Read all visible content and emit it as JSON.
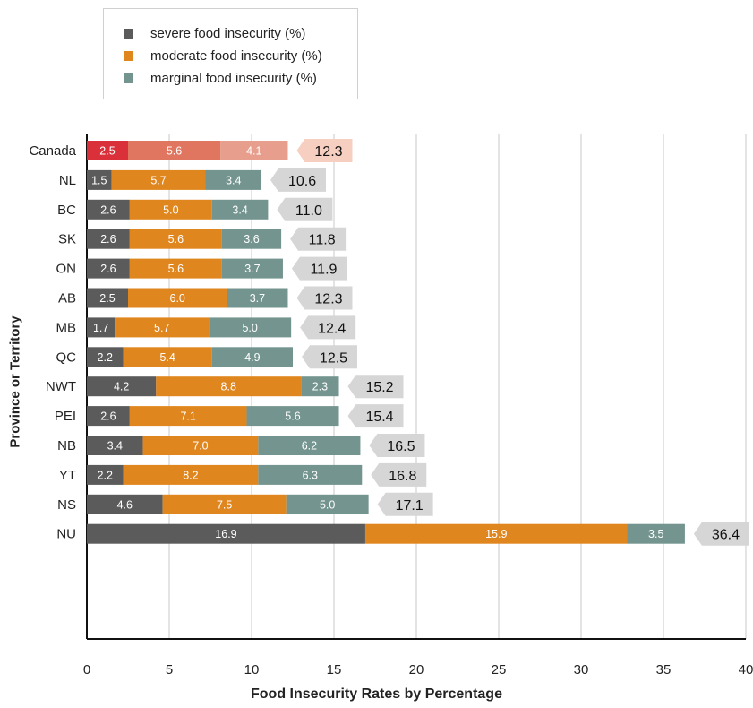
{
  "chart_data": {
    "type": "bar",
    "orientation": "horizontal",
    "stacked": true,
    "categories": [
      "Canada",
      "NL",
      "BC",
      "SK",
      "ON",
      "AB",
      "MB",
      "QC",
      "NWT",
      "PEI",
      "NB",
      "YT",
      "NS",
      "NU"
    ],
    "series": [
      {
        "name": "severe food insecurity (%)",
        "values": [
          2.5,
          1.5,
          2.6,
          2.6,
          2.6,
          2.5,
          1.7,
          2.2,
          4.2,
          2.6,
          3.4,
          2.2,
          4.6,
          16.9
        ]
      },
      {
        "name": "moderate food insecurity (%)",
        "values": [
          5.6,
          5.7,
          5.0,
          5.6,
          5.6,
          6.0,
          5.7,
          5.4,
          8.8,
          7.1,
          7.0,
          8.2,
          7.5,
          15.9
        ]
      },
      {
        "name": "marginal food insecurity (%)",
        "values": [
          4.1,
          3.4,
          3.4,
          3.6,
          3.7,
          3.7,
          5.0,
          4.9,
          2.3,
          5.6,
          6.2,
          6.3,
          5.0,
          3.5
        ]
      }
    ],
    "totals": [
      12.3,
      10.6,
      11.0,
      11.8,
      11.9,
      12.3,
      12.4,
      12.5,
      15.2,
      15.4,
      16.5,
      16.8,
      17.1,
      36.4
    ],
    "xlabel": "Food Insecurity Rates by Percentage",
    "ylabel": "Province or Territory",
    "xlim": [
      0,
      40
    ],
    "xticks": [
      0,
      5,
      10,
      15,
      20,
      25,
      30,
      35,
      40
    ],
    "grid": "vertical",
    "legend_position": "top-left",
    "colors": {
      "severe": "#5b5b5b",
      "moderate": "#e0861f",
      "marginal": "#74958f",
      "canada_severe": "#d9303a",
      "canada_moderate": "#e07560",
      "canada_marginal": "#e89e8c",
      "total_tag": "#d6d6d6",
      "canada_total_tag": "#f6cfc0"
    }
  }
}
